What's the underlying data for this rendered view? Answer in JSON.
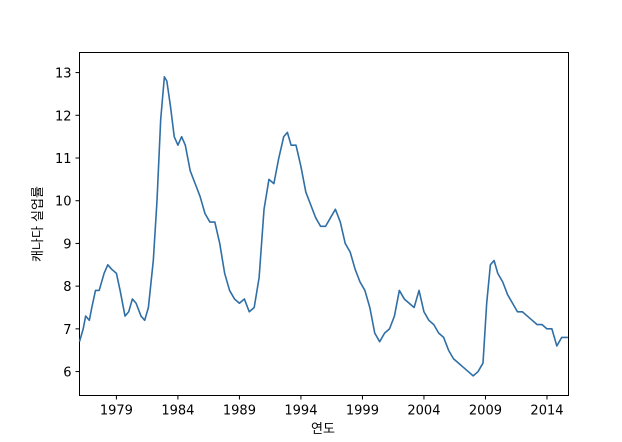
{
  "chart_data": {
    "type": "line",
    "xlabel": "연도",
    "ylabel": "캐나다 실업률",
    "x": [
      1976.0,
      1976.3,
      1976.5,
      1976.8,
      1977.0,
      1977.3,
      1977.6,
      1978.0,
      1978.3,
      1978.6,
      1979.0,
      1979.3,
      1979.7,
      1980.0,
      1980.3,
      1980.6,
      1981.0,
      1981.3,
      1981.6,
      1982.0,
      1982.3,
      1982.6,
      1982.9,
      1983.1,
      1983.4,
      1983.7,
      1984.0,
      1984.3,
      1984.6,
      1985.0,
      1985.4,
      1985.8,
      1986.2,
      1986.6,
      1987.0,
      1987.4,
      1987.8,
      1988.2,
      1988.6,
      1989.0,
      1989.4,
      1989.8,
      1990.2,
      1990.6,
      1991.0,
      1991.4,
      1991.8,
      1992.2,
      1992.6,
      1992.9,
      1993.2,
      1993.6,
      1994.0,
      1994.4,
      1994.8,
      1995.2,
      1995.6,
      1996.0,
      1996.4,
      1996.8,
      1997.2,
      1997.6,
      1998.0,
      1998.4,
      1998.8,
      1999.2,
      1999.6,
      2000.0,
      2000.4,
      2000.8,
      2001.2,
      2001.6,
      2002.0,
      2002.4,
      2002.8,
      2003.2,
      2003.6,
      2004.0,
      2004.4,
      2004.8,
      2005.2,
      2005.6,
      2006.0,
      2006.4,
      2006.8,
      2007.2,
      2007.6,
      2008.0,
      2008.4,
      2008.8,
      2009.1,
      2009.4,
      2009.7,
      2010.0,
      2010.4,
      2010.8,
      2011.2,
      2011.6,
      2012.0,
      2012.4,
      2012.8,
      2013.2,
      2013.6,
      2014.0,
      2014.4,
      2014.8,
      2015.2,
      2015.7
    ],
    "series": [
      {
        "color": "#2f6fa6",
        "values": [
          6.7,
          7.0,
          7.3,
          7.2,
          7.5,
          7.9,
          7.9,
          8.3,
          8.5,
          8.4,
          8.3,
          7.9,
          7.3,
          7.4,
          7.7,
          7.6,
          7.3,
          7.2,
          7.5,
          8.6,
          10.0,
          11.9,
          12.9,
          12.8,
          12.2,
          11.5,
          11.3,
          11.5,
          11.3,
          10.7,
          10.4,
          10.1,
          9.7,
          9.5,
          9.5,
          9.0,
          8.3,
          7.9,
          7.7,
          7.6,
          7.7,
          7.4,
          7.5,
          8.2,
          9.8,
          10.5,
          10.4,
          11.0,
          11.5,
          11.6,
          11.3,
          11.3,
          10.8,
          10.2,
          9.9,
          9.6,
          9.4,
          9.4,
          9.6,
          9.8,
          9.5,
          9.0,
          8.8,
          8.4,
          8.1,
          7.9,
          7.5,
          6.9,
          6.7,
          6.9,
          7.0,
          7.3,
          7.9,
          7.7,
          7.6,
          7.5,
          7.9,
          7.4,
          7.2,
          7.1,
          6.9,
          6.8,
          6.5,
          6.3,
          6.2,
          6.1,
          6.0,
          5.9,
          6.0,
          6.2,
          7.6,
          8.5,
          8.6,
          8.3,
          8.1,
          7.8,
          7.6,
          7.4,
          7.4,
          7.3,
          7.2,
          7.1,
          7.1,
          7.0,
          7.0,
          6.6,
          6.8,
          6.8
        ]
      }
    ],
    "xlim": [
      1976,
      2015.75
    ],
    "ylim": [
      5.44,
      13.47
    ],
    "xticks": [
      1979,
      1984,
      1989,
      1994,
      1999,
      2004,
      2009,
      2014
    ],
    "yticks": [
      6,
      7,
      8,
      9,
      10,
      11,
      12,
      13
    ]
  }
}
